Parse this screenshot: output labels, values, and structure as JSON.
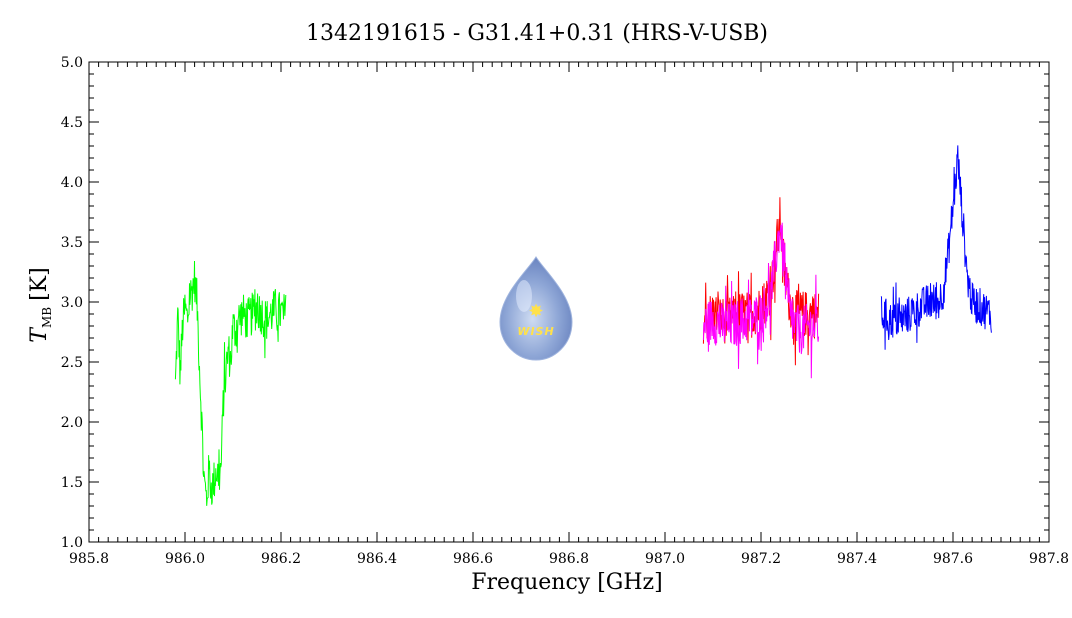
{
  "chart_data": {
    "type": "line",
    "title": "1342191615 - G31.41+0.31 (HRS-V-USB)",
    "xlabel": "Frequency [GHz]",
    "ylabel_main": "T",
    "ylabel_sub": "MB",
    "ylabel_unit": "[K]",
    "xlim": [
      985.8,
      987.8
    ],
    "ylim": [
      1.0,
      5.0
    ],
    "xticks": [
      "985.8",
      "986.0",
      "986.2",
      "986.4",
      "986.6",
      "986.8",
      "987.0",
      "987.2",
      "987.4",
      "987.6",
      "987.8"
    ],
    "yticks": [
      "1.0",
      "1.5",
      "2.0",
      "2.5",
      "3.0",
      "3.5",
      "4.0",
      "4.5",
      "5.0"
    ],
    "logo_text": "WISH",
    "series": [
      {
        "color": "#00ff00",
        "x": [
          985.98,
          985.985,
          985.99,
          985.995,
          986.0,
          986.005,
          986.01,
          986.015,
          986.02,
          986.025,
          986.03,
          986.035,
          986.04,
          986.045,
          986.05,
          986.055,
          986.06,
          986.065,
          986.07,
          986.075,
          986.08,
          986.085,
          986.09,
          986.095,
          986.1,
          986.105,
          986.11,
          986.12,
          986.13,
          986.14,
          986.15,
          986.16,
          986.17,
          986.18,
          986.19,
          986.2,
          986.21
        ],
        "y": [
          2.3,
          2.9,
          2.4,
          2.8,
          2.95,
          2.85,
          3.05,
          3.1,
          3.2,
          3.0,
          2.5,
          2.0,
          1.5,
          1.35,
          1.6,
          1.45,
          1.5,
          1.6,
          1.55,
          1.6,
          2.2,
          2.4,
          2.6,
          2.5,
          2.8,
          2.75,
          2.85,
          2.9,
          2.85,
          2.9,
          2.95,
          2.9,
          2.85,
          2.9,
          2.95,
          2.9,
          2.9
        ],
        "noise": 0.18
      },
      {
        "color": "#ff0000",
        "x": [
          987.08,
          987.1,
          987.12,
          987.14,
          987.16,
          987.18,
          987.2,
          987.22,
          987.23,
          987.24,
          987.25,
          987.26,
          987.27,
          987.28,
          987.3,
          987.32
        ],
        "y": [
          2.85,
          2.9,
          2.85,
          2.85,
          2.9,
          2.9,
          2.95,
          3.1,
          3.4,
          3.7,
          3.2,
          3.0,
          2.9,
          2.9,
          2.9,
          2.9
        ],
        "noise": 0.2
      },
      {
        "color": "#ff00ff",
        "x": [
          987.08,
          987.1,
          987.12,
          987.14,
          987.16,
          987.18,
          987.2,
          987.22,
          987.23,
          987.24,
          987.25,
          987.26,
          987.27,
          987.28,
          987.3,
          987.32
        ],
        "y": [
          2.8,
          2.85,
          2.8,
          2.8,
          2.85,
          2.85,
          2.9,
          3.05,
          3.35,
          3.65,
          3.2,
          2.9,
          2.8,
          2.75,
          2.8,
          2.8
        ],
        "noise": 0.2
      },
      {
        "color": "#0000ff",
        "x": [
          987.45,
          987.47,
          987.49,
          987.51,
          987.53,
          987.55,
          987.57,
          987.58,
          987.59,
          987.6,
          987.61,
          987.62,
          987.63,
          987.64,
          987.66,
          987.68
        ],
        "y": [
          2.9,
          2.85,
          2.85,
          2.9,
          2.95,
          3.0,
          3.0,
          3.1,
          3.4,
          3.8,
          4.2,
          3.7,
          3.2,
          3.0,
          2.95,
          2.9
        ],
        "noise": 0.16
      }
    ]
  }
}
